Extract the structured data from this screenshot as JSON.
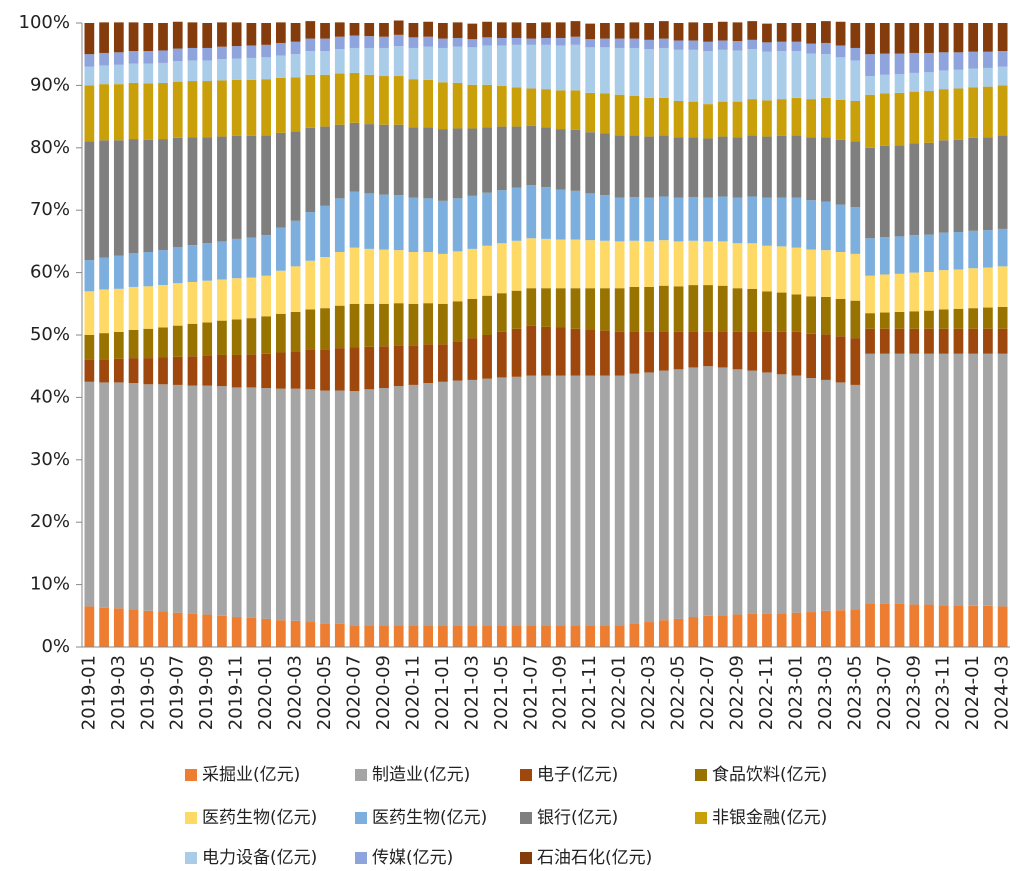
{
  "chart_data": {
    "type": "stacked_bar_100",
    "categories": [
      "2019-01",
      null,
      "2019-03",
      null,
      "2019-05",
      null,
      "2019-07",
      null,
      "2019-09",
      null,
      "2019-11",
      null,
      "2020-01",
      null,
      "2020-03",
      null,
      "2020-05",
      null,
      "2020-07",
      null,
      "2020-09",
      null,
      "2020-11",
      null,
      "2021-01",
      null,
      "2021-03",
      null,
      "2021-05",
      null,
      "2021-07",
      null,
      "2021-09",
      null,
      "2021-11",
      null,
      "2022-01",
      null,
      "2022-03",
      null,
      "2022-05",
      null,
      "2022-07",
      null,
      "2022-09",
      null,
      "2022-11",
      null,
      "2023-01",
      null,
      "2023-03",
      null,
      "2023-05",
      null,
      "2023-07",
      null,
      "2023-09",
      null,
      "2023-11",
      null,
      "2024-01",
      null,
      "2024-03"
    ],
    "series": [
      {
        "name": "采掘业(亿元)",
        "color": "#ed7d31",
        "values": [
          6.5,
          6.3,
          6.2,
          6.0,
          5.8,
          5.7,
          5.5,
          5.3,
          5.2,
          5.0,
          4.8,
          4.7,
          4.5,
          4.3,
          4.2,
          4.0,
          3.8,
          3.7,
          3.5,
          3.5,
          3.5,
          3.5,
          3.5,
          3.5,
          3.5,
          3.5,
          3.5,
          3.5,
          3.5,
          3.5,
          3.5,
          3.5,
          3.5,
          3.5,
          3.5,
          3.5,
          3.5,
          3.8,
          4.0,
          4.3,
          4.5,
          4.8,
          5.0,
          5.1,
          5.2,
          5.3,
          5.3,
          5.4,
          5.5,
          5.6,
          5.8,
          5.9,
          6.0,
          7,
          6.9,
          6.9,
          6.8,
          6.8,
          6.7,
          6.7,
          6.6,
          6.6,
          6.5
        ]
      },
      {
        "name": "制造业(亿元)",
        "color": "#a5a5a5",
        "values": [
          36,
          36.1,
          36.2,
          36.3,
          36.3,
          36.4,
          36.5,
          36.6,
          36.7,
          36.8,
          36.8,
          36.9,
          37,
          37.1,
          37.2,
          37.3,
          37.3,
          37.4,
          37.5,
          37.8,
          38,
          38.3,
          38.5,
          38.8,
          39,
          39.2,
          39.3,
          39.5,
          39.7,
          39.8,
          40,
          40,
          40,
          40,
          40,
          40,
          40,
          40,
          40,
          40,
          40,
          40,
          40,
          39.7,
          39.3,
          39,
          38.7,
          38.3,
          38,
          37.5,
          37,
          36.5,
          36,
          40,
          40.1,
          40.1,
          40.2,
          40.2,
          40.3,
          40.3,
          40.4,
          40.4,
          40.5
        ]
      },
      {
        "name": "电子(亿元)",
        "color": "#9e480e",
        "values": [
          3.5,
          3.7,
          3.8,
          4,
          4.2,
          4.3,
          4.5,
          4.7,
          4.8,
          5,
          5.2,
          5.3,
          5.5,
          5.8,
          6,
          6.3,
          6.5,
          6.8,
          7,
          6.8,
          6.7,
          6.5,
          6.3,
          6.2,
          6,
          6.3,
          6.7,
          7,
          7.3,
          7.7,
          8,
          7.8,
          7.7,
          7.5,
          7.3,
          7.2,
          7,
          6.8,
          6.5,
          6.3,
          6,
          5.8,
          5.5,
          5.8,
          6,
          6.3,
          6.5,
          6.8,
          7,
          7.1,
          7.3,
          7.4,
          7.5,
          4,
          4,
          4,
          4,
          4,
          4,
          4,
          4,
          4,
          4
        ]
      },
      {
        "name": "食品饮料(亿元)",
        "color": "#997300",
        "values": [
          4,
          4.2,
          4.3,
          4.5,
          4.7,
          4.8,
          5,
          5.2,
          5.3,
          5.5,
          5.7,
          5.8,
          6,
          6.2,
          6.3,
          6.5,
          6.7,
          6.8,
          7,
          6.9,
          6.8,
          6.8,
          6.7,
          6.6,
          6.5,
          6.4,
          6.3,
          6.3,
          6.2,
          6.1,
          6,
          6.2,
          6.3,
          6.5,
          6.7,
          6.8,
          7,
          7.1,
          7.2,
          7.3,
          7.3,
          7.4,
          7.5,
          7.3,
          7,
          6.8,
          6.5,
          6.3,
          6,
          6,
          6,
          6,
          6,
          2.5,
          2.6,
          2.7,
          2.8,
          2.9,
          3.1,
          3.2,
          3.3,
          3.4,
          3.5
        ]
      },
      {
        "name": "医药生物(亿元)",
        "color": "#ffd966",
        "values": [
          7,
          7,
          6.9,
          6.9,
          6.8,
          6.8,
          6.8,
          6.7,
          6.7,
          6.6,
          6.6,
          6.5,
          6.5,
          6.9,
          7.3,
          7.8,
          8.2,
          8.6,
          9,
          8.8,
          8.7,
          8.5,
          8.3,
          8.2,
          8,
          8,
          8,
          8,
          8,
          8,
          8,
          7.9,
          7.8,
          7.8,
          7.7,
          7.6,
          7.5,
          7.4,
          7.3,
          7.3,
          7.2,
          7.1,
          7,
          7.1,
          7.2,
          7.3,
          7.3,
          7.4,
          7.5,
          7.5,
          7.5,
          7.5,
          7.5,
          6,
          6.1,
          6.1,
          6.2,
          6.2,
          6.3,
          6.3,
          6.4,
          6.4,
          6.5
        ]
      },
      {
        "name": "医药生物(亿元)",
        "color": "#7cafdd",
        "values": [
          5,
          5.1,
          5.3,
          5.4,
          5.5,
          5.6,
          5.8,
          5.9,
          6,
          6.1,
          6.3,
          6.4,
          6.5,
          6.9,
          7.3,
          7.8,
          8.2,
          8.6,
          9,
          8.9,
          8.8,
          8.8,
          8.7,
          8.6,
          8.5,
          8.5,
          8.5,
          8.5,
          8.5,
          8.5,
          8.5,
          8.3,
          8,
          7.8,
          7.5,
          7.3,
          7,
          7,
          7,
          7,
          7,
          7,
          7,
          7.2,
          7.3,
          7.5,
          7.7,
          7.8,
          8,
          7.9,
          7.8,
          7.6,
          7.5,
          6,
          6,
          6,
          6,
          6,
          6,
          6,
          6,
          6,
          6
        ]
      },
      {
        "name": "银行(亿元)",
        "color": "#7f7f7f",
        "values": [
          19,
          18.8,
          18.5,
          18.3,
          18,
          17.8,
          17.5,
          17.3,
          17,
          16.8,
          16.5,
          16.3,
          16,
          15.2,
          14.3,
          13.5,
          12.7,
          11.8,
          11,
          11.1,
          11.2,
          11.3,
          11.3,
          11.4,
          11.5,
          11.2,
          10.8,
          10.5,
          10.2,
          9.8,
          9.5,
          9.6,
          9.7,
          9.8,
          9.8,
          9.9,
          10,
          9.9,
          9.8,
          9.8,
          9.7,
          9.6,
          9.5,
          9.6,
          9.7,
          9.8,
          9.8,
          9.9,
          10,
          10.1,
          10.3,
          10.4,
          10.5,
          14.5,
          14.6,
          14.6,
          14.7,
          14.7,
          14.8,
          14.8,
          14.9,
          14.9,
          15
        ]
      },
      {
        "name": "非银金融(亿元)",
        "color": "#c9a00a",
        "values": [
          9,
          9,
          9,
          9,
          9,
          9,
          9,
          9,
          9,
          9,
          9,
          9,
          9,
          8.8,
          8.7,
          8.5,
          8.3,
          8.2,
          8,
          7.9,
          7.8,
          7.8,
          7.7,
          7.6,
          7.5,
          7.3,
          7,
          6.8,
          6.5,
          6.3,
          6,
          6.1,
          6.2,
          6.3,
          6.3,
          6.4,
          6.5,
          6.3,
          6.2,
          6,
          5.8,
          5.7,
          5.5,
          5.6,
          5.7,
          5.8,
          5.8,
          5.9,
          6,
          6.1,
          6.3,
          6.4,
          6.5,
          8.5,
          8.4,
          8.4,
          8.3,
          8.3,
          8.2,
          8.2,
          8.1,
          8.1,
          8
        ]
      },
      {
        "name": "电力设备(亿元)",
        "color": "#a9cce9",
        "values": [
          3,
          3,
          3.1,
          3.1,
          3.2,
          3.2,
          3.3,
          3.3,
          3.3,
          3.4,
          3.4,
          3.5,
          3.5,
          3.6,
          3.7,
          3.8,
          3.8,
          3.9,
          4,
          4.3,
          4.5,
          4.8,
          5,
          5.3,
          5.5,
          5.8,
          6,
          6.3,
          6.5,
          6.8,
          7,
          7.1,
          7.2,
          7.3,
          7.3,
          7.4,
          7.5,
          7.7,
          7.8,
          8,
          8.2,
          8.3,
          8.5,
          8.3,
          8.2,
          8,
          7.8,
          7.7,
          7.5,
          7.3,
          7,
          6.8,
          6.5,
          3,
          3,
          3,
          3,
          3,
          3,
          3,
          3,
          3,
          3
        ]
      },
      {
        "name": "传媒(亿元)",
        "color": "#8fa4dd",
        "values": [
          2,
          2,
          2,
          2,
          2,
          2,
          2,
          2,
          2,
          2,
          2,
          2,
          2,
          2,
          2,
          2,
          2,
          2,
          2,
          1.9,
          1.8,
          1.8,
          1.7,
          1.6,
          1.5,
          1.4,
          1.3,
          1.3,
          1.2,
          1.1,
          1,
          1.1,
          1.2,
          1.3,
          1.3,
          1.4,
          1.5,
          1.5,
          1.5,
          1.5,
          1.5,
          1.5,
          1.5,
          1.5,
          1.5,
          1.5,
          1.5,
          1.5,
          1.5,
          1.6,
          1.8,
          1.9,
          2,
          3.5,
          3.4,
          3.3,
          3.2,
          3.1,
          2.9,
          2.8,
          2.7,
          2.6,
          2.5
        ]
      },
      {
        "name": "石油石化(亿元)",
        "color": "#843c0c",
        "values": [
          5,
          4.9,
          4.8,
          4.6,
          4.5,
          4.4,
          4.3,
          4.1,
          4,
          3.9,
          3.8,
          3.6,
          3.5,
          3.3,
          3,
          2.8,
          2.5,
          2.3,
          2,
          2.1,
          2.2,
          2.3,
          2.3,
          2.4,
          2.5,
          2.5,
          2.5,
          2.5,
          2.5,
          2.5,
          2.5,
          2.5,
          2.5,
          2.5,
          2.5,
          2.5,
          2.5,
          2.6,
          2.7,
          2.8,
          2.8,
          2.9,
          3,
          3,
          3,
          3,
          3,
          3,
          3,
          3.3,
          3.5,
          3.8,
          4,
          5,
          4.9,
          4.9,
          4.8,
          4.8,
          4.7,
          4.7,
          4.6,
          4.6,
          4.5
        ]
      }
    ],
    "ylim": [
      0,
      100
    ],
    "yticks": [
      {
        "value": 0,
        "label": "0%"
      },
      {
        "value": 10,
        "label": "10%"
      },
      {
        "value": 20,
        "label": "20%"
      },
      {
        "value": 30,
        "label": "30%"
      },
      {
        "value": 40,
        "label": "40%"
      },
      {
        "value": 50,
        "label": "50%"
      },
      {
        "value": 60,
        "label": "60%"
      },
      {
        "value": 70,
        "label": "70%"
      },
      {
        "value": 80,
        "label": "80%"
      },
      {
        "value": 90,
        "label": "90%"
      },
      {
        "value": 100,
        "label": "100%"
      }
    ],
    "grid": false,
    "legend": "bottom"
  }
}
